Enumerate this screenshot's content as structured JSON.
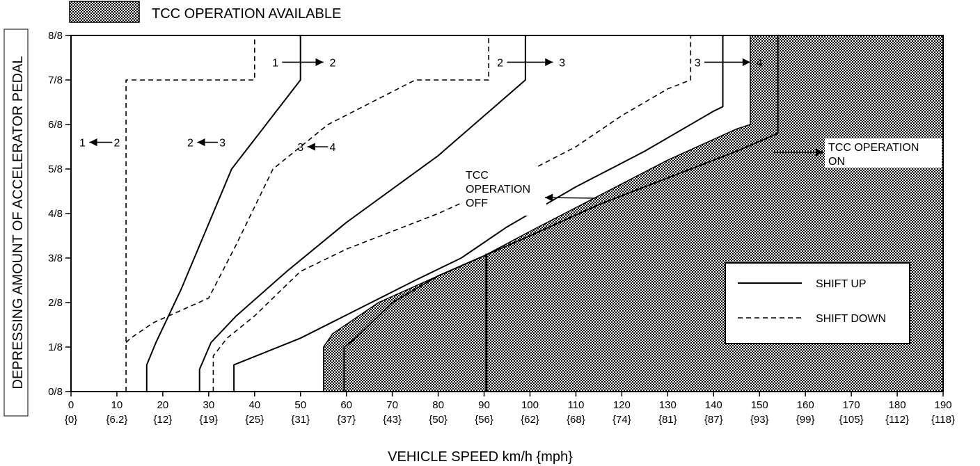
{
  "chart_data": {
    "type": "line",
    "title": "",
    "xlabel": "VEHICLE SPEED  km/h {mph}",
    "ylabel": "DEPRESSING AMOUNT OF ACCELERATOR PEDAL",
    "xlim": [
      0,
      190
    ],
    "ylim": [
      0,
      8
    ],
    "grid": false,
    "x_ticks": [
      {
        "kmh": "0",
        "mph": "{0}"
      },
      {
        "kmh": "10",
        "mph": "{6.2}"
      },
      {
        "kmh": "20",
        "mph": "{12}"
      },
      {
        "kmh": "30",
        "mph": "{19}"
      },
      {
        "kmh": "40",
        "mph": "{25}"
      },
      {
        "kmh": "50",
        "mph": "{31}"
      },
      {
        "kmh": "60",
        "mph": "{37}"
      },
      {
        "kmh": "70",
        "mph": "{43}"
      },
      {
        "kmh": "80",
        "mph": "{50}"
      },
      {
        "kmh": "90",
        "mph": "{56}"
      },
      {
        "kmh": "100",
        "mph": "{62}"
      },
      {
        "kmh": "110",
        "mph": "{68}"
      },
      {
        "kmh": "120",
        "mph": "{74}"
      },
      {
        "kmh": "130",
        "mph": "{81}"
      },
      {
        "kmh": "140",
        "mph": "{87}"
      },
      {
        "kmh": "150",
        "mph": "{93}"
      },
      {
        "kmh": "160",
        "mph": "{99}"
      },
      {
        "kmh": "170",
        "mph": "{105}"
      },
      {
        "kmh": "180",
        "mph": "{112}"
      },
      {
        "kmh": "190",
        "mph": "{118}"
      }
    ],
    "y_ticks": [
      "0/8",
      "1/8",
      "2/8",
      "3/8",
      "4/8",
      "5/8",
      "6/8",
      "7/8",
      "8/8"
    ],
    "top_legend": {
      "label": "TCC OPERATION AVAILABLE"
    },
    "legend": {
      "placement": "lower-right",
      "entries": [
        {
          "label": "SHIFT UP",
          "style": "solid"
        },
        {
          "label": "SHIFT DOWN",
          "style": "dashed"
        }
      ]
    },
    "tcc_region": [
      [
        55,
        0
      ],
      [
        55,
        1
      ],
      [
        57,
        1.3
      ],
      [
        67,
        2
      ],
      [
        80,
        2.6
      ],
      [
        90,
        3.05
      ],
      [
        100,
        3.6
      ],
      [
        115,
        4.4
      ],
      [
        130,
        5.2
      ],
      [
        145,
        5.9
      ],
      [
        148,
        6
      ],
      [
        148,
        8
      ],
      [
        190,
        8
      ],
      [
        190,
        0
      ]
    ],
    "series": [
      {
        "style": "solid",
        "points": [
          [
            16.5,
            0
          ],
          [
            16.5,
            0.6
          ],
          [
            18.5,
            1.1
          ],
          [
            24,
            2.3
          ],
          [
            35,
            5
          ],
          [
            50,
            7
          ],
          [
            50,
            8
          ]
        ]
      },
      {
        "style": "dashed",
        "points": [
          [
            12,
            0
          ],
          [
            12,
            7
          ],
          [
            40,
            7
          ],
          [
            40,
            8
          ]
        ]
      },
      {
        "style": "dashed",
        "points": [
          [
            12,
            1.1
          ],
          [
            13,
            1.2
          ],
          [
            18,
            1.55
          ],
          [
            30,
            2.1
          ],
          [
            36,
            3.3
          ],
          [
            44,
            5
          ],
          [
            56,
            6
          ],
          [
            75,
            7
          ],
          [
            91,
            7
          ],
          [
            91,
            8
          ]
        ]
      },
      {
        "style": "solid",
        "points": [
          [
            28,
            0
          ],
          [
            28,
            0.5
          ],
          [
            30.5,
            1.1
          ],
          [
            36,
            1.7
          ],
          [
            47,
            2.7
          ],
          [
            60,
            3.8
          ],
          [
            80,
            5.3
          ],
          [
            99,
            7
          ],
          [
            99,
            8
          ]
        ]
      },
      {
        "style": "dashed",
        "points": [
          [
            31,
            0
          ],
          [
            31,
            0.8
          ],
          [
            34,
            1.2
          ],
          [
            40,
            1.7
          ],
          [
            50,
            2.7
          ],
          [
            60,
            3.2
          ],
          [
            80,
            4
          ],
          [
            95,
            4.7
          ],
          [
            110,
            5.5
          ],
          [
            120,
            6.2
          ],
          [
            130,
            6.8
          ],
          [
            135,
            7
          ],
          [
            135,
            8
          ]
        ]
      },
      {
        "style": "solid",
        "points": [
          [
            35.5,
            0
          ],
          [
            35.5,
            0.6
          ],
          [
            50,
            1.2
          ],
          [
            75,
            2.5
          ],
          [
            85,
            3
          ],
          [
            95,
            3.7
          ],
          [
            110,
            4.6
          ],
          [
            125,
            5.4
          ],
          [
            140,
            6.3
          ],
          [
            142,
            6.4
          ],
          [
            142,
            8
          ]
        ]
      },
      {
        "style": "solid",
        "points": [
          [
            59.5,
            0
          ],
          [
            59.5,
            1
          ],
          [
            62,
            1.2
          ],
          [
            70,
            2
          ],
          [
            80,
            2.6
          ],
          [
            90,
            3.05
          ],
          [
            100,
            3.5
          ],
          [
            115,
            4.2
          ],
          [
            130,
            4.8
          ],
          [
            145,
            5.4
          ],
          [
            154,
            5.8
          ],
          [
            154,
            8
          ]
        ]
      }
    ],
    "verticals": [
      {
        "x": 90.5,
        "y_from": 0,
        "y_to": 3.1
      }
    ],
    "annotations": [
      {
        "text": "1",
        "x": 44.5,
        "y": 7.4,
        "arrow": {
          "from": [
            46,
            7.4
          ],
          "to": [
            55,
            7.4
          ]
        }
      },
      {
        "text": "2",
        "x": 57,
        "y": 7.4
      },
      {
        "text": "2",
        "x": 93.5,
        "y": 7.4,
        "arrow": {
          "from": [
            95,
            7.4
          ],
          "to": [
            105,
            7.4
          ]
        }
      },
      {
        "text": "3",
        "x": 107,
        "y": 7.4
      },
      {
        "text": "3",
        "x": 136.5,
        "y": 7.4,
        "arrow": {
          "from": [
            138,
            7.4
          ],
          "to": [
            148,
            7.4
          ]
        }
      },
      {
        "text": "4",
        "x": 150,
        "y": 7.4
      },
      {
        "text": "1",
        "x": 2.5,
        "y": 5.6
      },
      {
        "text": "2",
        "x": 10,
        "y": 5.6,
        "arrow": {
          "from": [
            9,
            5.6
          ],
          "to": [
            4,
            5.6
          ]
        }
      },
      {
        "text": "2",
        "x": 26,
        "y": 5.6
      },
      {
        "text": "3",
        "x": 33,
        "y": 5.6,
        "arrow": {
          "from": [
            32,
            5.6
          ],
          "to": [
            27.5,
            5.6
          ]
        }
      },
      {
        "text": "3",
        "x": 50,
        "y": 5.5
      },
      {
        "text": "4",
        "x": 57,
        "y": 5.5,
        "arrow": {
          "from": [
            56,
            5.5
          ],
          "to": [
            51.5,
            5.5
          ]
        }
      }
    ],
    "callouts": [
      {
        "lines": [
          "TCC",
          "OPERATION",
          "OFF"
        ]
      },
      {
        "lines": [
          "TCC OPERATION",
          "ON"
        ]
      }
    ]
  }
}
